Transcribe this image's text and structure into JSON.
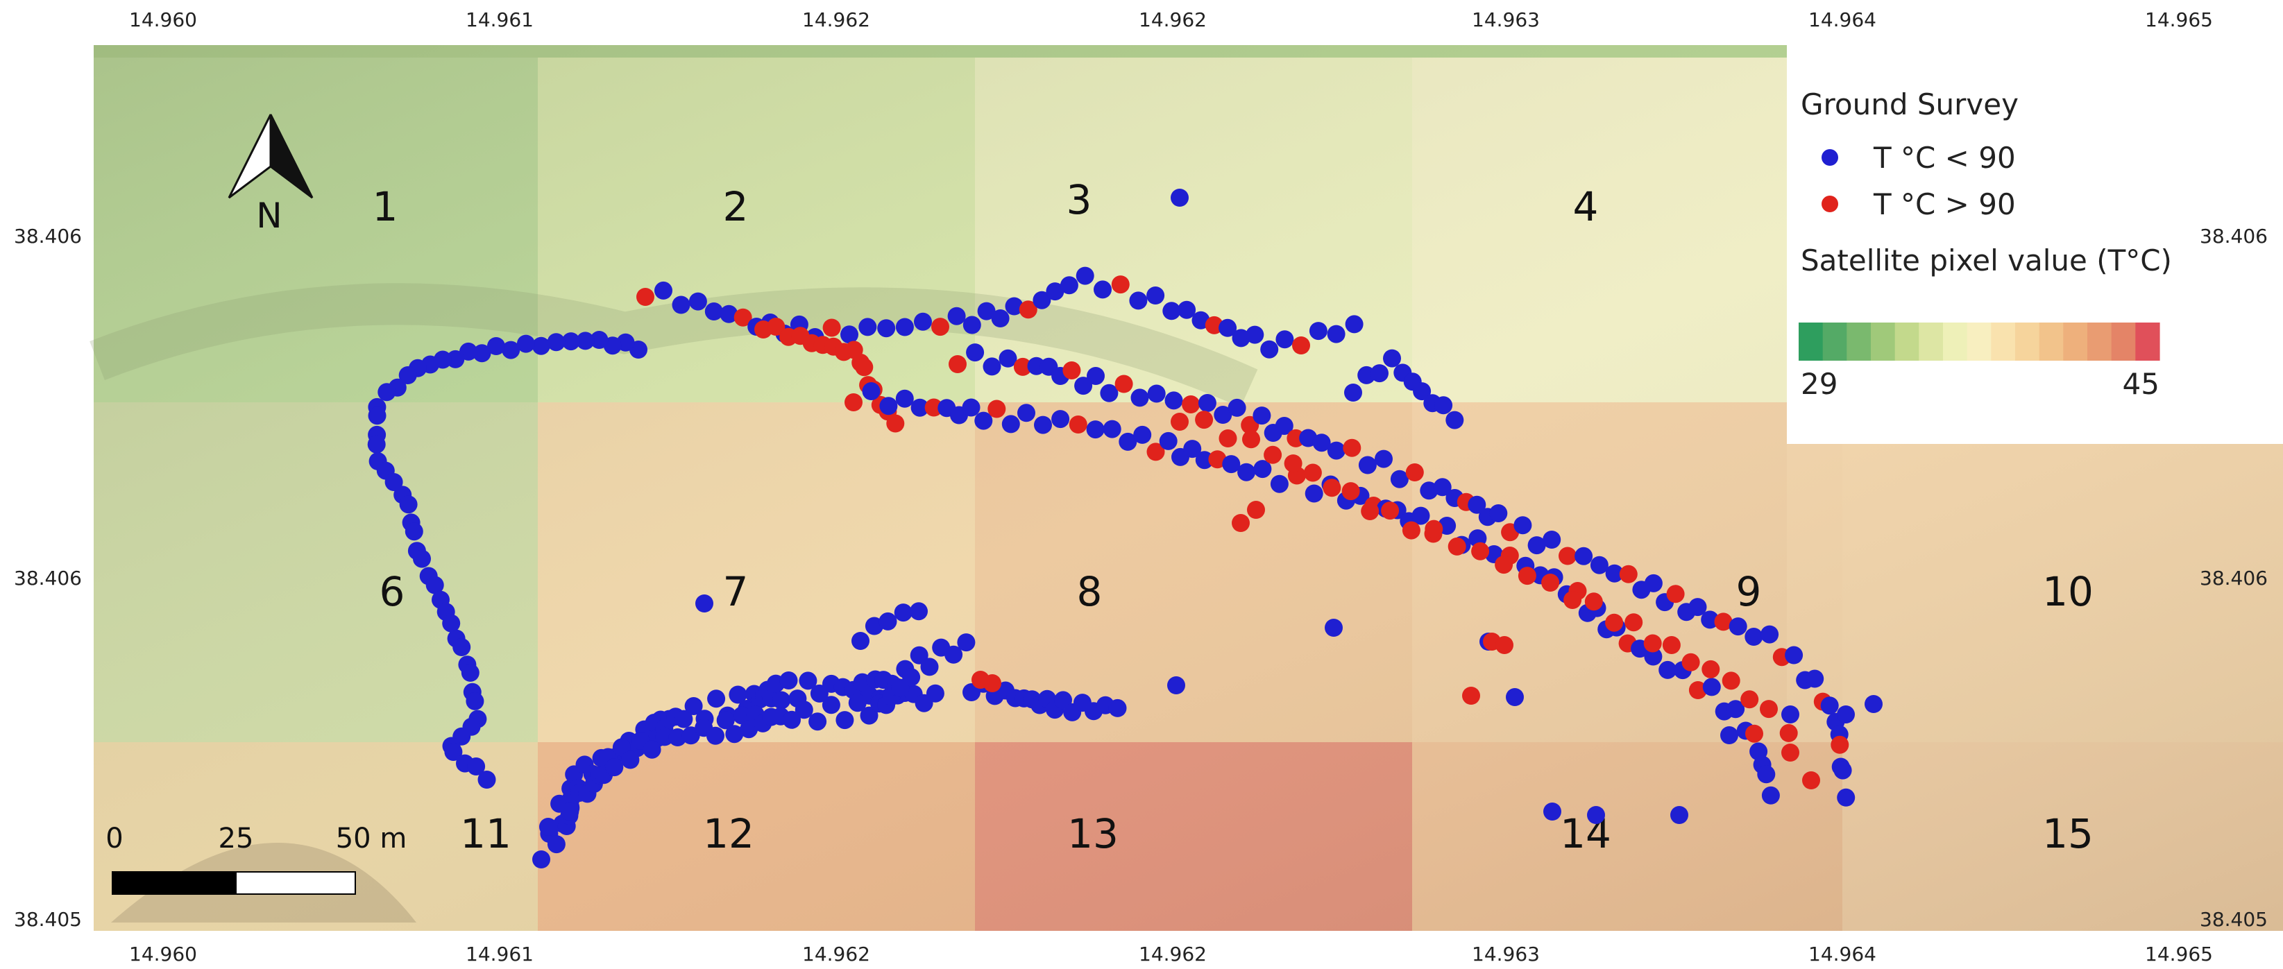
{
  "map": {
    "top_ticks": [
      "14.960",
      "14.961",
      "14.962",
      "14.962",
      "14.963",
      "14.964",
      "14.965"
    ],
    "bottom_ticks": [
      "14.960",
      "14.961",
      "14.962",
      "14.962",
      "14.963",
      "14.964",
      "14.965"
    ],
    "left_ticks": [
      "38.406",
      "38.406",
      "38.405"
    ],
    "right_ticks": [
      "38.406",
      "38.406",
      "38.405"
    ],
    "cells": [
      {
        "label": "1",
        "temp": 33.5
      },
      {
        "label": "2",
        "temp": 34.5
      },
      {
        "label": "3",
        "temp": 35.5
      },
      {
        "label": "4",
        "temp": 36
      },
      {
        "label": "6",
        "temp": 35
      },
      {
        "label": "7",
        "temp": 38.5
      },
      {
        "label": "8",
        "temp": 39
      },
      {
        "label": "9",
        "temp": 39
      },
      {
        "label": "10",
        "temp": 38.5
      },
      {
        "label": "11",
        "temp": 37.5
      },
      {
        "label": "12",
        "temp": 41
      },
      {
        "label": "13",
        "temp": 43
      },
      {
        "label": "14",
        "temp": 40
      },
      {
        "label": "15",
        "temp": 38.5
      }
    ],
    "north_label": "N",
    "scale": {
      "labels": [
        "0",
        "25",
        "50 m"
      ]
    },
    "colors": {
      "low": "#2e9e5e",
      "mid": "#f5efc0",
      "high": "#e0505a",
      "blue_point": "#1f1fd1",
      "red_point": "#e0231c"
    }
  },
  "legend": {
    "title": "Ground Survey",
    "items": [
      {
        "label": "T °C < 90",
        "color": "#1f1fd1"
      },
      {
        "label": "T °C > 90",
        "color": "#e0231c"
      }
    ],
    "ramp_title": "Satellite pixel value (T°C)",
    "ramp_min": "29",
    "ramp_max": "45",
    "ramp_colors": [
      "#2e9e5e",
      "#54aa66",
      "#7ab96e",
      "#a0c97a",
      "#c3d98c",
      "#dde6a4",
      "#eef0b8",
      "#f8efc0",
      "#f9e2ae",
      "#f6d49c",
      "#f2c38b",
      "#eeb07c",
      "#e99c72",
      "#e48467",
      "#e0505a"
    ]
  }
}
